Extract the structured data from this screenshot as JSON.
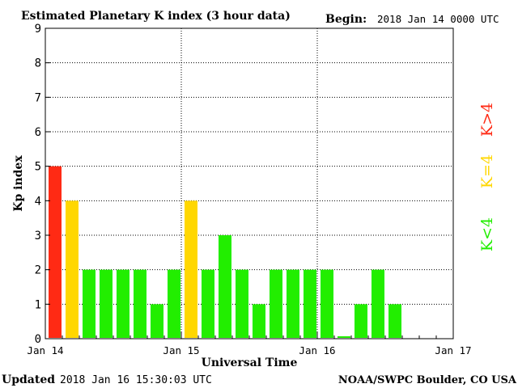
{
  "header": {
    "title": "Estimated Planetary K index (3 hour data)",
    "begin_label": "Begin:",
    "begin_value": "2018 Jan 14 0000 UTC"
  },
  "footer": {
    "updated_label": "Updated",
    "updated_value": "2018 Jan 16 15:30:03 UTC",
    "source": "NOAA/SWPC Boulder, CO USA"
  },
  "legend": [
    {
      "label": "K>4",
      "color": "#ff2a14"
    },
    {
      "label": "K=4",
      "color": "#ffd700"
    },
    {
      "label": "K<4",
      "color": "#22ee00"
    }
  ],
  "chart_data": {
    "type": "bar",
    "title": "Estimated Planetary K index (3 hour data)",
    "xlabel": "Universal Time",
    "ylabel": "Kp index",
    "ylim": [
      0,
      9
    ],
    "yticks": [
      "0",
      "1",
      "2",
      "3",
      "4",
      "5",
      "6",
      "7",
      "8",
      "9"
    ],
    "xticks": [
      "Jan 14",
      "Jan 15",
      "Jan 16",
      "Jan 17"
    ],
    "interval_hours": 3,
    "start": "2018 Jan 14 00:00 UTC",
    "grid": true,
    "values": [
      5,
      4,
      2,
      2,
      2,
      2,
      1,
      2,
      4,
      2,
      3,
      2,
      1,
      2,
      2,
      2,
      2,
      0.07,
      1,
      2,
      1
    ],
    "colors": {
      "above": "#ff2a14",
      "equal": "#ffd700",
      "below": "#22ee00"
    }
  }
}
